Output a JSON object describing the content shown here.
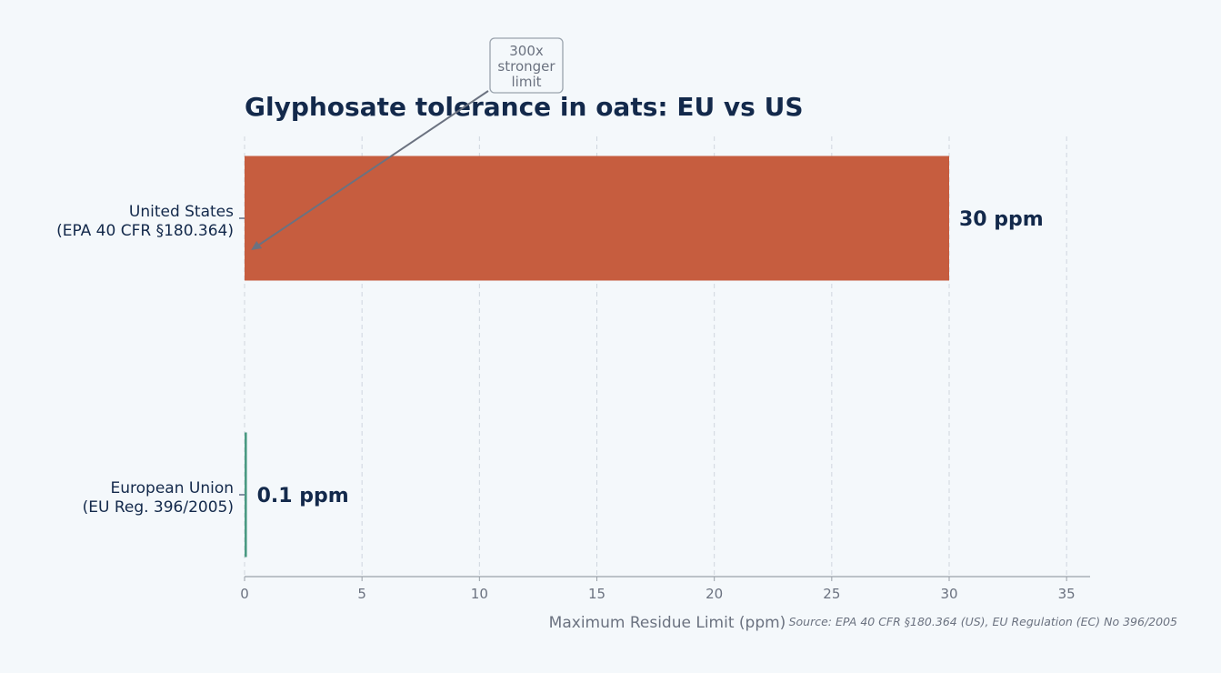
{
  "chart_data": {
    "type": "bar",
    "orientation": "horizontal",
    "title": "Glyphosate tolerance in oats: EU vs US",
    "xlabel": "Maximum Residue Limit (ppm)",
    "ylabel": "",
    "xlim": [
      0,
      36
    ],
    "xticks": [
      0,
      5,
      10,
      15,
      20,
      25,
      30,
      35
    ],
    "grid": "x, dashed",
    "categories": [
      {
        "line1": "United States",
        "line2": "(EPA 40 CFR §180.364)"
      },
      {
        "line1": "European Union",
        "line2": "(EU Reg. 396/2005)"
      }
    ],
    "values": [
      30,
      0.1
    ],
    "value_labels": [
      "30 ppm",
      "0.1 ppm"
    ],
    "bar_colors": [
      "#c65d3f",
      "#4a9a82"
    ],
    "annotation": {
      "lines": [
        "300x",
        "stronger",
        "limit"
      ],
      "points_to": {
        "category": "United States",
        "x": 0.2
      }
    },
    "source": "Source: EPA 40 CFR §180.364 (US), EU Regulation (EC) No 396/2005"
  }
}
